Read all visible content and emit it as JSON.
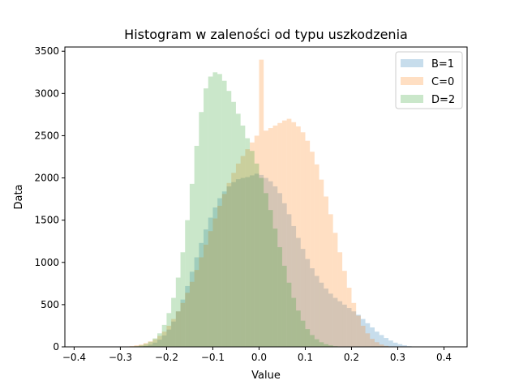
{
  "chart_data": {
    "type": "histogram",
    "title": "Histogram w zaleności od typu uszkodzenia",
    "xlabel": "Value",
    "ylabel": "Data",
    "xlim": [
      -0.42,
      0.45
    ],
    "ylim": [
      0,
      3550
    ],
    "xticks": [
      -0.4,
      -0.3,
      -0.2,
      -0.1,
      0.0,
      0.1,
      0.2,
      0.3,
      0.4
    ],
    "xtick_labels": [
      "−0.4",
      "−0.3",
      "−0.2",
      "−0.1",
      "0.0",
      "0.1",
      "0.2",
      "0.3",
      "0.4"
    ],
    "yticks": [
      0,
      500,
      1000,
      1500,
      2000,
      2500,
      3000,
      3500
    ],
    "ytick_labels": [
      "0",
      "500",
      "1000",
      "1500",
      "2000",
      "2500",
      "3000",
      "3500"
    ],
    "legend_position": "top-right",
    "series": [
      {
        "name": "B=1",
        "color": "#1f77b4",
        "opacity": 0.25,
        "bins": [
          [
            -0.4,
            0.0
          ],
          [
            -0.28,
            2
          ],
          [
            -0.26,
            6
          ],
          [
            -0.25,
            12
          ],
          [
            -0.24,
            25
          ],
          [
            -0.23,
            50
          ],
          [
            -0.22,
            85
          ],
          [
            -0.21,
            135
          ],
          [
            -0.2,
            205
          ],
          [
            -0.19,
            300
          ],
          [
            -0.18,
            420
          ],
          [
            -0.17,
            560
          ],
          [
            -0.16,
            720
          ],
          [
            -0.15,
            890
          ],
          [
            -0.14,
            1060
          ],
          [
            -0.13,
            1230
          ],
          [
            -0.12,
            1390
          ],
          [
            -0.11,
            1530
          ],
          [
            -0.1,
            1650
          ],
          [
            -0.09,
            1760
          ],
          [
            -0.08,
            1840
          ],
          [
            -0.07,
            1900
          ],
          [
            -0.06,
            1950
          ],
          [
            -0.05,
            1985
          ],
          [
            -0.04,
            2000
          ],
          [
            -0.03,
            2010
          ],
          [
            -0.02,
            2030
          ],
          [
            -0.01,
            2050
          ],
          [
            0.0,
            2035
          ],
          [
            0.01,
            2000
          ],
          [
            0.02,
            1960
          ],
          [
            0.03,
            1900
          ],
          [
            0.04,
            1820
          ],
          [
            0.05,
            1700
          ],
          [
            0.06,
            1570
          ],
          [
            0.07,
            1430
          ],
          [
            0.08,
            1290
          ],
          [
            0.09,
            1160
          ],
          [
            0.1,
            1040
          ],
          [
            0.11,
            930
          ],
          [
            0.12,
            840
          ],
          [
            0.13,
            760
          ],
          [
            0.14,
            690
          ],
          [
            0.15,
            630
          ],
          [
            0.16,
            580
          ],
          [
            0.17,
            540
          ],
          [
            0.18,
            500
          ],
          [
            0.19,
            460
          ],
          [
            0.2,
            420
          ],
          [
            0.21,
            380
          ],
          [
            0.22,
            330
          ],
          [
            0.23,
            280
          ],
          [
            0.24,
            230
          ],
          [
            0.25,
            180
          ],
          [
            0.26,
            140
          ],
          [
            0.27,
            105
          ],
          [
            0.28,
            75
          ],
          [
            0.29,
            50
          ],
          [
            0.3,
            32
          ],
          [
            0.31,
            18
          ],
          [
            0.32,
            8
          ],
          [
            0.33,
            3
          ],
          [
            0.34,
            0
          ]
        ]
      },
      {
        "name": "C=0",
        "color": "#ff7f0e",
        "opacity": 0.25,
        "bins": [
          [
            -0.3,
            2
          ],
          [
            -0.29,
            5
          ],
          [
            -0.28,
            10
          ],
          [
            -0.27,
            18
          ],
          [
            -0.26,
            28
          ],
          [
            -0.25,
            45
          ],
          [
            -0.24,
            65
          ],
          [
            -0.23,
            90
          ],
          [
            -0.22,
            130
          ],
          [
            -0.21,
            180
          ],
          [
            -0.2,
            250
          ],
          [
            -0.19,
            330
          ],
          [
            -0.18,
            420
          ],
          [
            -0.17,
            520
          ],
          [
            -0.16,
            640
          ],
          [
            -0.15,
            770
          ],
          [
            -0.14,
            910
          ],
          [
            -0.13,
            1060
          ],
          [
            -0.12,
            1210
          ],
          [
            -0.11,
            1370
          ],
          [
            -0.1,
            1520
          ],
          [
            -0.09,
            1670
          ],
          [
            -0.08,
            1810
          ],
          [
            -0.07,
            1940
          ],
          [
            -0.06,
            2060
          ],
          [
            -0.05,
            2170
          ],
          [
            -0.04,
            2260
          ],
          [
            -0.03,
            2340
          ],
          [
            -0.02,
            2420
          ],
          [
            -0.01,
            2500
          ],
          [
            0.0,
            3400
          ],
          [
            0.01,
            2560
          ],
          [
            0.02,
            2590
          ],
          [
            0.03,
            2620
          ],
          [
            0.04,
            2650
          ],
          [
            0.05,
            2680
          ],
          [
            0.06,
            2700
          ],
          [
            0.07,
            2660
          ],
          [
            0.08,
            2610
          ],
          [
            0.09,
            2540
          ],
          [
            0.1,
            2440
          ],
          [
            0.11,
            2310
          ],
          [
            0.12,
            2160
          ],
          [
            0.13,
            1980
          ],
          [
            0.14,
            1780
          ],
          [
            0.15,
            1570
          ],
          [
            0.16,
            1350
          ],
          [
            0.17,
            1120
          ],
          [
            0.18,
            900
          ],
          [
            0.19,
            700
          ],
          [
            0.2,
            520
          ],
          [
            0.21,
            370
          ],
          [
            0.22,
            250
          ],
          [
            0.23,
            160
          ],
          [
            0.24,
            95
          ],
          [
            0.25,
            55
          ],
          [
            0.26,
            28
          ],
          [
            0.27,
            12
          ],
          [
            0.28,
            5
          ],
          [
            0.29,
            0
          ]
        ]
      },
      {
        "name": "D=2",
        "color": "#2ca02c",
        "opacity": 0.25,
        "bins": [
          [
            -0.28,
            3
          ],
          [
            -0.27,
            8
          ],
          [
            -0.26,
            18
          ],
          [
            -0.25,
            35
          ],
          [
            -0.24,
            60
          ],
          [
            -0.23,
            100
          ],
          [
            -0.22,
            160
          ],
          [
            -0.21,
            260
          ],
          [
            -0.2,
            400
          ],
          [
            -0.19,
            580
          ],
          [
            -0.18,
            820
          ],
          [
            -0.17,
            1120
          ],
          [
            -0.16,
            1500
          ],
          [
            -0.15,
            1930
          ],
          [
            -0.14,
            2380
          ],
          [
            -0.13,
            2780
          ],
          [
            -0.12,
            3060
          ],
          [
            -0.11,
            3200
          ],
          [
            -0.1,
            3250
          ],
          [
            -0.09,
            3230
          ],
          [
            -0.08,
            3150
          ],
          [
            -0.07,
            3030
          ],
          [
            -0.06,
            2900
          ],
          [
            -0.05,
            2760
          ],
          [
            -0.04,
            2620
          ],
          [
            -0.03,
            2470
          ],
          [
            -0.02,
            2320
          ],
          [
            -0.01,
            2170
          ],
          [
            0.0,
            2000
          ],
          [
            0.01,
            1820
          ],
          [
            0.02,
            1620
          ],
          [
            0.03,
            1400
          ],
          [
            0.04,
            1180
          ],
          [
            0.05,
            960
          ],
          [
            0.06,
            760
          ],
          [
            0.07,
            580
          ],
          [
            0.08,
            430
          ],
          [
            0.09,
            310
          ],
          [
            0.1,
            210
          ],
          [
            0.11,
            140
          ],
          [
            0.12,
            90
          ],
          [
            0.13,
            55
          ],
          [
            0.14,
            32
          ],
          [
            0.15,
            18
          ],
          [
            0.16,
            8
          ],
          [
            0.17,
            3
          ],
          [
            0.18,
            0
          ]
        ]
      }
    ]
  }
}
